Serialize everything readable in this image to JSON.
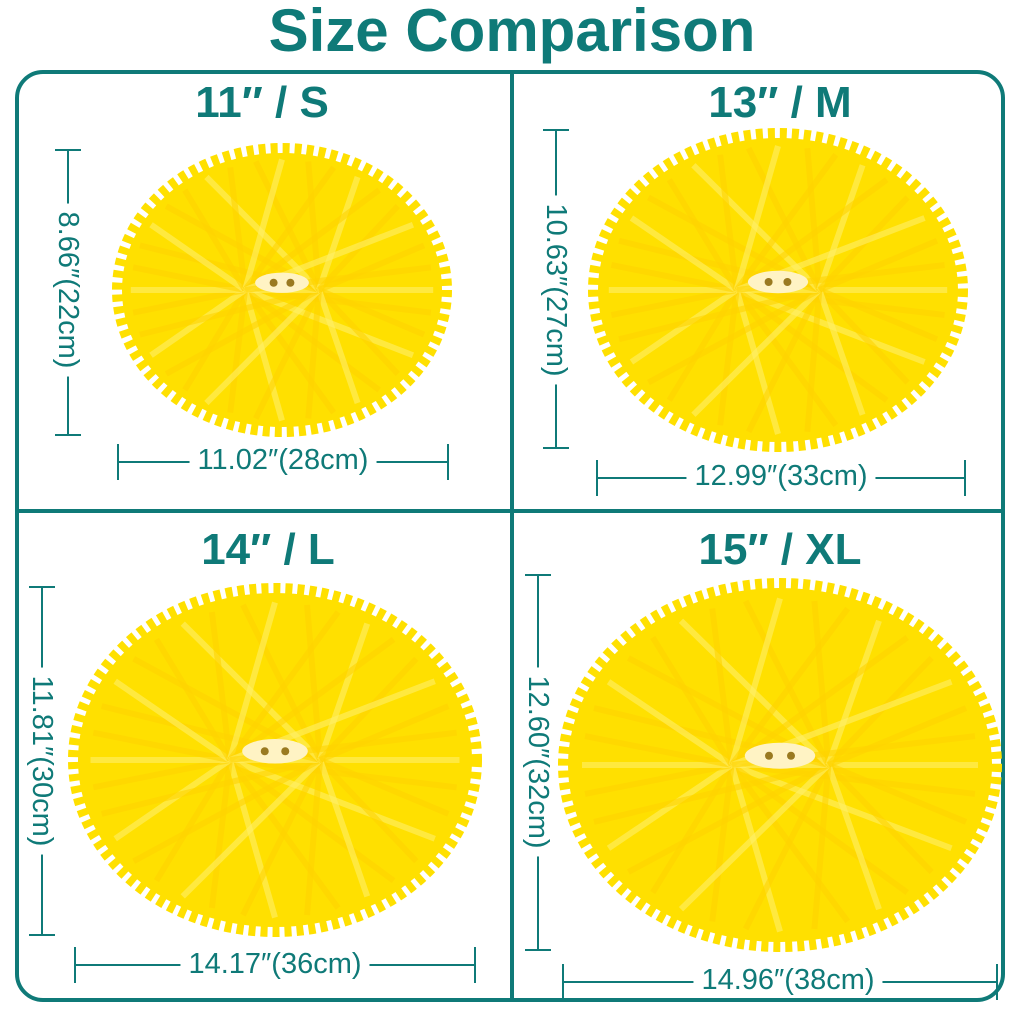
{
  "title": "Size Comparison",
  "colors": {
    "accent": "#0f7a78",
    "pompom": "#ffe000"
  },
  "panels": [
    {
      "size": "11″ / S",
      "height": "8.66″(22cm)",
      "width": "11.02″(28cm)"
    },
    {
      "size": "13″ / M",
      "height": "10.63″(27cm)",
      "width": "12.99″(33cm)"
    },
    {
      "size": "14″ / L",
      "height": "11.81″(30cm)",
      "width": "14.17″(36cm)"
    },
    {
      "size": "15″ / XL",
      "height": "12.60″(32cm)",
      "width": "14.96″(38cm)"
    }
  ]
}
